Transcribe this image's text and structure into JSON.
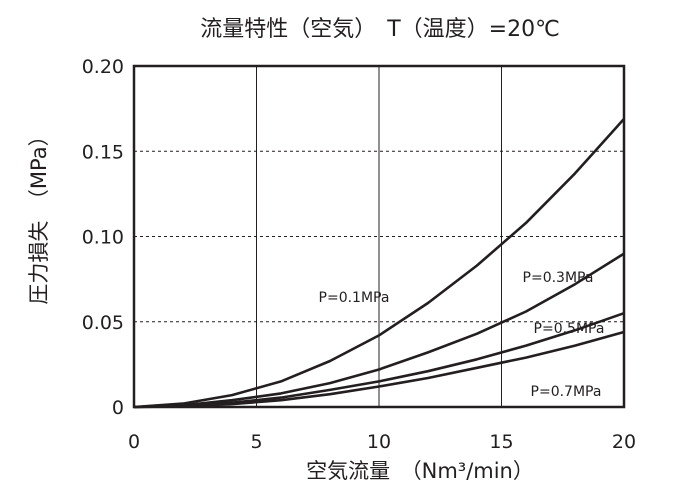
{
  "chart_data": {
    "type": "line",
    "title": "流量特性（空気）　T（温度）=20℃",
    "xlabel": "空気流量　（Nm³/min）",
    "ylabel": "圧力損失　（MPa）",
    "xlim": [
      0,
      20
    ],
    "ylim": [
      0,
      0.2
    ],
    "x_ticks": [
      "0",
      "5",
      "10",
      "15",
      "20"
    ],
    "y_ticks": [
      "0",
      "0.05",
      "0.10",
      "0.15",
      "0.20"
    ],
    "grid": {
      "x": "solid",
      "y": "dashed"
    },
    "series": [
      {
        "name": "P=0.1MPa",
        "x": [
          0,
          2,
          4,
          6,
          8,
          10,
          12,
          14,
          16,
          18,
          19.5,
          20
        ],
        "y": [
          0,
          0.002,
          0.007,
          0.015,
          0.027,
          0.042,
          0.061,
          0.083,
          0.108,
          0.137,
          0.161,
          0.169
        ]
      },
      {
        "name": "P=0.3MPa",
        "x": [
          0,
          2,
          4,
          6,
          8,
          10,
          12,
          14,
          16,
          18,
          20
        ],
        "y": [
          0,
          0.001,
          0.004,
          0.008,
          0.014,
          0.022,
          0.032,
          0.043,
          0.056,
          0.072,
          0.09
        ]
      },
      {
        "name": "P=0.5MPa",
        "x": [
          0,
          2,
          4,
          6,
          8,
          10,
          12,
          14,
          16,
          18,
          20
        ],
        "y": [
          0,
          0.0006,
          0.0025,
          0.0055,
          0.01,
          0.015,
          0.021,
          0.028,
          0.036,
          0.045,
          0.055
        ]
      },
      {
        "name": "P=0.7MPa",
        "x": [
          0,
          2,
          4,
          6,
          8,
          10,
          12,
          14,
          16,
          18,
          20
        ],
        "y": [
          0,
          0.0004,
          0.0017,
          0.004,
          0.0075,
          0.012,
          0.017,
          0.023,
          0.029,
          0.036,
          0.044
        ]
      }
    ]
  }
}
